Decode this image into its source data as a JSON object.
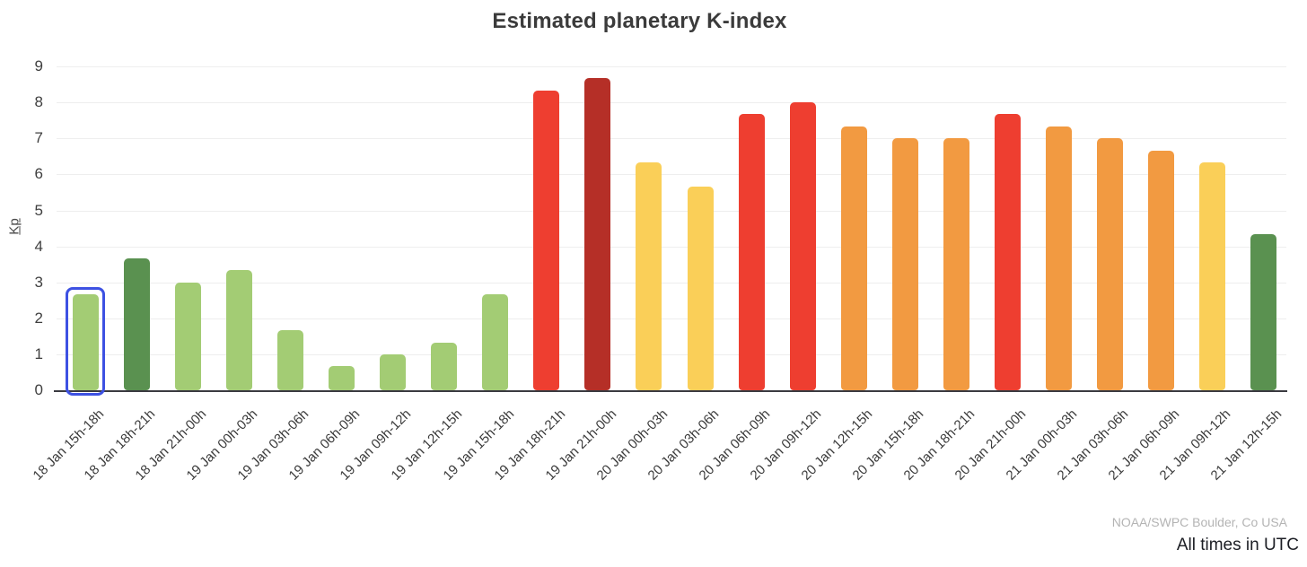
{
  "title": "Estimated planetary K-index",
  "footer": {
    "attribution": "NOAA/SWPC Boulder, Co USA",
    "note": "All times in UTC"
  },
  "colors": {
    "green": "#a3cc74",
    "dark_green": "#5a9150",
    "yellow": "#facf58",
    "orange": "#f29a41",
    "red": "#ee3e30",
    "dark_red": "#b52f27",
    "selection_blue": "#3d51e2",
    "gridline": "#eeeeee",
    "axis": "#3a3a40"
  },
  "chart_data": {
    "type": "bar",
    "title": "Estimated planetary K-index",
    "xlabel": "",
    "ylabel": "Kp",
    "ylim": [
      0,
      9
    ],
    "y_ticks": [
      0,
      1,
      2,
      3,
      4,
      5,
      6,
      7,
      8,
      9
    ],
    "grid": true,
    "legend": "none",
    "x_tick_rotation": -45,
    "selected_index": 0,
    "categories": [
      "18 Jan 15h-18h",
      "18 Jan 18h-21h",
      "18 Jan 21h-00h",
      "19 Jan 00h-03h",
      "19 Jan 03h-06h",
      "19 Jan 06h-09h",
      "19 Jan 09h-12h",
      "19 Jan 12h-15h",
      "19 Jan 15h-18h",
      "19 Jan 18h-21h",
      "19 Jan 21h-00h",
      "20 Jan 00h-03h",
      "20 Jan 03h-06h",
      "20 Jan 06h-09h",
      "20 Jan 09h-12h",
      "20 Jan 12h-15h",
      "20 Jan 15h-18h",
      "20 Jan 18h-21h",
      "20 Jan 21h-00h",
      "21 Jan 00h-03h",
      "21 Jan 03h-06h",
      "21 Jan 06h-09h",
      "21 Jan 09h-12h",
      "21 Jan 12h-15h"
    ],
    "values": [
      2.67,
      3.67,
      3.0,
      3.33,
      1.67,
      0.67,
      1.0,
      1.33,
      2.67,
      8.33,
      8.67,
      6.33,
      5.67,
      7.67,
      8.0,
      7.33,
      7.0,
      7.0,
      7.67,
      7.33,
      7.0,
      6.67,
      6.33,
      4.33
    ],
    "bar_colors": [
      "green",
      "dark_green",
      "green",
      "green",
      "green",
      "green",
      "green",
      "green",
      "green",
      "red",
      "dark_red",
      "yellow",
      "yellow",
      "red",
      "red",
      "orange",
      "orange",
      "orange",
      "red",
      "orange",
      "orange",
      "orange",
      "yellow",
      "dark_green"
    ]
  }
}
